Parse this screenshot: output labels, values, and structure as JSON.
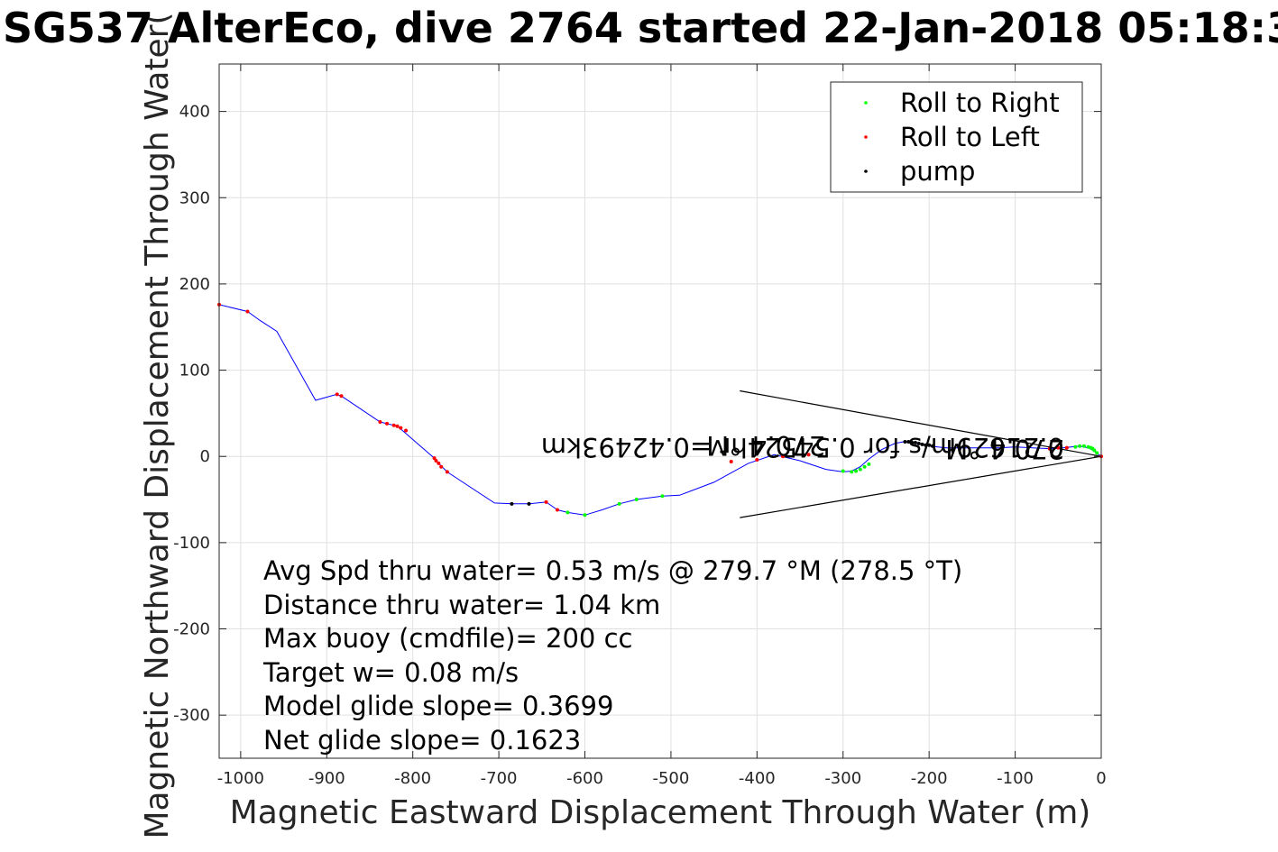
{
  "chart_data": {
    "type": "line",
    "title": "SG537 AlterEco, dive 2764 started 22-Jan-2018 05:18:3",
    "xlabel": "Magnetic Eastward Displacement Through Water (m)",
    "ylabel": "Magnetic Northward Displacement Through Water(",
    "xlim": [
      -1025,
      0
    ],
    "ylim": [
      -350,
      455
    ],
    "xticks": [
      -1000,
      -900,
      -800,
      -700,
      -600,
      -500,
      -400,
      -300,
      -200,
      -100,
      0
    ],
    "yticks": [
      -300,
      -200,
      -100,
      0,
      100,
      200,
      300,
      400
    ],
    "grid": true,
    "legend_position": "top-right",
    "track": {
      "name": "",
      "color": "#0000ff",
      "x": [
        -1025,
        -992,
        -978,
        -958,
        -913,
        -888,
        -880,
        -838,
        -818,
        -812,
        -775,
        -768,
        -760,
        -705,
        -685,
        -665,
        -645,
        -632,
        -620,
        -600,
        -580,
        -560,
        -540,
        -510,
        -490,
        -450,
        -410,
        -380,
        -350,
        -320,
        -300,
        -290,
        -280,
        -270,
        -255,
        -240,
        -230,
        -220,
        -210,
        -200,
        -180,
        -160,
        -140,
        -120,
        -100,
        -80,
        -60,
        -45,
        -35,
        -25,
        -15,
        -8,
        0
      ],
      "y": [
        176,
        168,
        158,
        145,
        65,
        72,
        68,
        40,
        35,
        30,
        -2,
        -10,
        -18,
        -54,
        -55,
        -55,
        -53,
        -62,
        -65,
        -68,
        -62,
        -55,
        -50,
        -46,
        -45,
        -30,
        -8,
        2,
        -5,
        -15,
        -18,
        -17,
        -12,
        -3,
        8,
        15,
        17,
        16,
        14,
        12,
        10,
        10,
        10,
        10,
        11,
        10,
        9,
        10,
        11,
        12,
        10,
        6,
        0
      ]
    },
    "series": [
      {
        "name": "Roll to Right",
        "color": "#00ff00",
        "x": [
          -620,
          -600,
          -560,
          -540,
          -510,
          -300,
          -290,
          -285,
          -280,
          -275,
          -270,
          -30,
          -25,
          -20,
          -15,
          -12,
          -10,
          -8,
          -5
        ],
        "y": [
          -65,
          -68,
          -55,
          -50,
          -46,
          -17,
          -18,
          -17,
          -15,
          -12,
          -9,
          11,
          12,
          12,
          11,
          10,
          9,
          7,
          4
        ]
      },
      {
        "name": "Roll to Left",
        "color": "#ff0000",
        "x": [
          -1025,
          -992,
          -888,
          -883,
          -838,
          -830,
          -822,
          -818,
          -814,
          -808,
          -775,
          -773,
          -770,
          -767,
          -760,
          -645,
          -632,
          -430,
          -400,
          -370,
          -340,
          -60,
          -50,
          -40,
          0
        ],
        "y": [
          176,
          168,
          72,
          70,
          40,
          38,
          36,
          35,
          33,
          30,
          -2,
          -5,
          -8,
          -12,
          -18,
          -53,
          -62,
          -6,
          -4,
          0,
          2,
          9,
          10,
          10,
          0
        ]
      },
      {
        "name": "pump",
        "color": "#000000",
        "x": [
          -685,
          -665,
          -228,
          -224,
          -220,
          -216,
          -212,
          -208,
          -204,
          -200,
          -196
        ],
        "y": [
          -55,
          -55,
          17,
          17,
          16,
          16,
          15,
          14,
          13,
          13,
          12
        ]
      }
    ],
    "current_cone": {
      "color": "#000000",
      "upper": {
        "x": [
          -420,
          0
        ],
        "y": [
          76,
          0
        ]
      },
      "lower": {
        "x": [
          -420,
          0
        ],
        "y": [
          -71,
          0
        ]
      }
    },
    "mirrored_labels": [
      "0.21629m/s for 0.54524hr =0.42493km",
      "270.4 °M",
      "270.4 °M"
    ],
    "annotations": [
      "Avg Spd thru water=  0.53 m/s @ 279.7 °M (278.5 °T)",
      "Distance thru water=  1.04 km",
      "Max buoy (cmdfile)= 200 cc",
      "Target w= 0.08 m/s",
      "Model glide slope= 0.3699",
      "Net glide slope= 0.1623"
    ]
  }
}
